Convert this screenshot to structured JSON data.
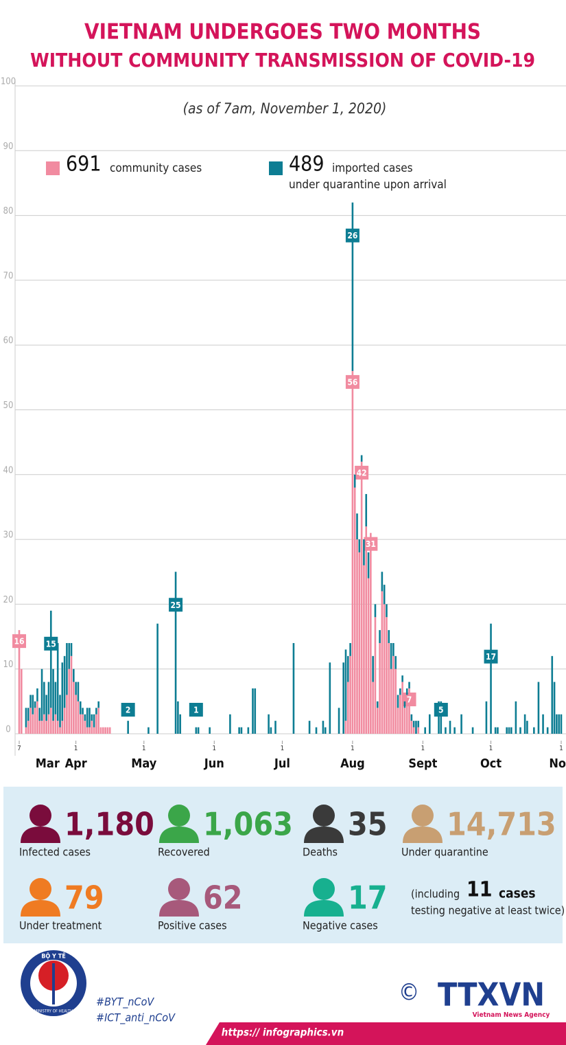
{
  "header": {
    "title_line1": "VIETNAM UNDERGOES TWO MONTHS",
    "title_line2": "WITHOUT COMMUNITY TRANSMISSION OF COVID-19",
    "subtitle": "(as of 7am, November 1, 2020)"
  },
  "chart_data": {
    "type": "stacked_bar",
    "legend": [
      {
        "number": "691",
        "text": "community cases"
      },
      {
        "number": "489",
        "text": "imported cases",
        "text2": "under quarantine upon arrival"
      }
    ],
    "ylim": [
      0,
      100
    ],
    "yticks": [
      0,
      10,
      20,
      30,
      40,
      50,
      60,
      70,
      80,
      90,
      100
    ],
    "grid": true,
    "xlim": [
      0,
      239
    ],
    "xticks": [
      {
        "value": 0,
        "label": "7"
      },
      {
        "value": 25,
        "label": "1"
      },
      {
        "value": 55,
        "label": "1"
      },
      {
        "value": 86,
        "label": "1"
      },
      {
        "value": 116,
        "label": "1"
      },
      {
        "value": 147,
        "label": "1"
      },
      {
        "value": 178,
        "label": "1"
      },
      {
        "value": 208,
        "label": "1"
      },
      {
        "value": 239,
        "label": "1"
      }
    ],
    "months": [
      "Mar",
      "Apr",
      "May",
      "Jun",
      "Jul",
      "Aug",
      "Sept",
      "Oct",
      "Nov"
    ],
    "x": [
      0,
      1,
      3,
      4,
      5,
      6,
      7,
      8,
      9,
      10,
      11,
      12,
      13,
      14,
      15,
      16,
      17,
      18,
      19,
      20,
      21,
      22,
      23,
      24,
      25,
      26,
      27,
      28,
      29,
      30,
      31,
      32,
      33,
      34,
      35,
      36,
      37,
      38,
      39,
      40,
      48,
      57,
      61,
      69,
      70,
      71,
      78,
      79,
      84,
      93,
      97,
      98,
      101,
      103,
      104,
      110,
      111,
      113,
      121,
      128,
      131,
      134,
      135,
      137,
      141,
      143,
      144,
      145,
      146,
      147,
      148,
      149,
      150,
      151,
      152,
      153,
      154,
      155,
      156,
      157,
      158,
      159,
      160,
      161,
      162,
      163,
      164,
      165,
      166,
      167,
      168,
      169,
      170,
      171,
      172,
      173,
      174,
      175,
      176,
      179,
      181,
      185,
      186,
      188,
      190,
      192,
      195,
      200,
      206,
      208,
      210,
      211,
      215,
      216,
      217,
      219,
      221,
      223,
      224,
      227,
      229,
      231,
      233,
      235,
      236,
      237,
      238,
      239
    ],
    "series": [
      {
        "name": "community cases",
        "color": "#f18ba0",
        "values": [
          16,
          10,
          1,
          2,
          4,
          3,
          4,
          5,
          2,
          2,
          3,
          2,
          3,
          4,
          2,
          3,
          2,
          1,
          2,
          4,
          6,
          10,
          12,
          8,
          6,
          5,
          3,
          3,
          2,
          1,
          1,
          2,
          1,
          3,
          4,
          1,
          1,
          1,
          1,
          1,
          0,
          0,
          0,
          0,
          0,
          0,
          0,
          0,
          0,
          0,
          0,
          0,
          0,
          0,
          0,
          0,
          0,
          0,
          0,
          0,
          0,
          0,
          0,
          0,
          0,
          0,
          2,
          8,
          12,
          56,
          38,
          30,
          28,
          42,
          26,
          32,
          24,
          31,
          8,
          18,
          4,
          14,
          22,
          20,
          18,
          14,
          10,
          12,
          10,
          4,
          6,
          8,
          4,
          6,
          7,
          2,
          1,
          0,
          1,
          0,
          0,
          0,
          0,
          0,
          0,
          0,
          0,
          0,
          0,
          0,
          0,
          0,
          0,
          0,
          0,
          0,
          0,
          0,
          0,
          0,
          0,
          0,
          0,
          0,
          0,
          0,
          0,
          0
        ],
        "value_labels": [
          "16",
          null,
          null,
          null,
          null,
          null,
          null,
          null,
          null,
          null,
          null,
          null,
          null,
          null,
          null,
          null,
          null,
          null,
          null,
          null,
          null,
          null,
          null,
          null,
          null,
          null,
          null,
          null,
          null,
          null,
          null,
          null,
          null,
          null,
          null,
          null,
          null,
          null,
          null,
          null,
          null,
          null,
          null,
          null,
          null,
          null,
          null,
          null,
          null,
          null,
          null,
          null,
          null,
          null,
          null,
          null,
          null,
          null,
          null,
          null,
          null,
          null,
          null,
          null,
          null,
          null,
          null,
          null,
          null,
          "56",
          null,
          null,
          null,
          "42",
          null,
          null,
          null,
          "31",
          null,
          null,
          null,
          null,
          null,
          null,
          null,
          null,
          null,
          null,
          null,
          null,
          null,
          null,
          null,
          null,
          "7",
          null,
          null,
          null,
          null,
          null,
          null,
          null,
          null,
          null,
          null,
          null,
          null,
          null,
          null,
          null,
          null,
          null,
          null,
          null,
          null,
          null,
          null,
          null,
          null,
          null,
          null,
          null,
          null,
          null,
          null,
          null,
          null,
          null
        ]
      },
      {
        "name": "imported cases",
        "color": "#0d7d93",
        "values": [
          0,
          0,
          3,
          2,
          2,
          3,
          1,
          2,
          2,
          8,
          5,
          4,
          5,
          15,
          8,
          5,
          12,
          5,
          9,
          8,
          8,
          4,
          2,
          2,
          2,
          3,
          2,
          1,
          1,
          3,
          3,
          1,
          2,
          1,
          1,
          0,
          0,
          0,
          0,
          0,
          2,
          1,
          17,
          25,
          5,
          3,
          1,
          1,
          1,
          3,
          1,
          1,
          1,
          7,
          7,
          3,
          1,
          2,
          14,
          2,
          1,
          2,
          1,
          11,
          4,
          11,
          11,
          4,
          2,
          26,
          2,
          4,
          2,
          1,
          4,
          5,
          4,
          0,
          4,
          2,
          1,
          2,
          3,
          3,
          2,
          2,
          4,
          2,
          2,
          2,
          1,
          1,
          1,
          1,
          1,
          1,
          1,
          2,
          1,
          1,
          3,
          5,
          5,
          1,
          2,
          1,
          3,
          1,
          5,
          17,
          1,
          1,
          1,
          1,
          1,
          5,
          1,
          3,
          2,
          1,
          8,
          3,
          1,
          12,
          8,
          3,
          3,
          3
        ],
        "value_labels": [
          null,
          null,
          null,
          null,
          null,
          null,
          null,
          null,
          null,
          null,
          null,
          null,
          null,
          "15",
          null,
          null,
          null,
          null,
          null,
          null,
          null,
          null,
          null,
          null,
          null,
          null,
          null,
          null,
          null,
          null,
          null,
          null,
          null,
          null,
          null,
          null,
          null,
          null,
          null,
          null,
          "2",
          null,
          null,
          "25",
          null,
          null,
          "1",
          null,
          null,
          null,
          null,
          null,
          null,
          null,
          null,
          null,
          null,
          null,
          null,
          null,
          null,
          null,
          null,
          null,
          null,
          null,
          null,
          null,
          null,
          "26",
          null,
          null,
          null,
          null,
          null,
          null,
          null,
          null,
          null,
          null,
          null,
          null,
          null,
          null,
          null,
          null,
          null,
          null,
          null,
          null,
          null,
          null,
          null,
          null,
          null,
          null,
          null,
          null,
          null,
          null,
          null,
          null,
          "5",
          null,
          null,
          null,
          null,
          null,
          null,
          "17",
          null,
          null,
          null,
          null,
          null,
          null,
          null,
          null,
          null,
          null,
          null,
          null,
          null,
          null,
          null,
          null,
          null,
          null
        ]
      }
    ]
  },
  "stats": [
    {
      "value": "1,180",
      "label": "Infected cases",
      "color": "#7a0c3c"
    },
    {
      "value": "1,063",
      "label": "Recovered",
      "color": "#3ba649"
    },
    {
      "value": "35",
      "label": "Deaths",
      "color": "#3a3a3a"
    },
    {
      "value": "14,713",
      "label": "Under quarantine",
      "color": "#c89f72"
    },
    {
      "value": "79",
      "label": "Under treatment",
      "color": "#ef7b22"
    },
    {
      "value": "62",
      "label": "Positive cases",
      "color": "#a7597b"
    },
    {
      "value": "17",
      "label": "Negative cases",
      "color": "#17b08f"
    }
  ],
  "note": {
    "pre": "(including",
    "number": "11",
    "post": "cases",
    "line2": "testing negative at least twice)"
  },
  "footer": {
    "ministry_top": "BỘ Y TẾ",
    "ministry_bottom": "MINISTRY OF HEALTH",
    "tag1": "#BYT_nCoV",
    "tag2": "#ICT_anti_nCoV",
    "url": "https:// infographics.vn",
    "copyright": "©",
    "agency": "TTXVN",
    "agency_sub": "Vietnam News Agency"
  }
}
